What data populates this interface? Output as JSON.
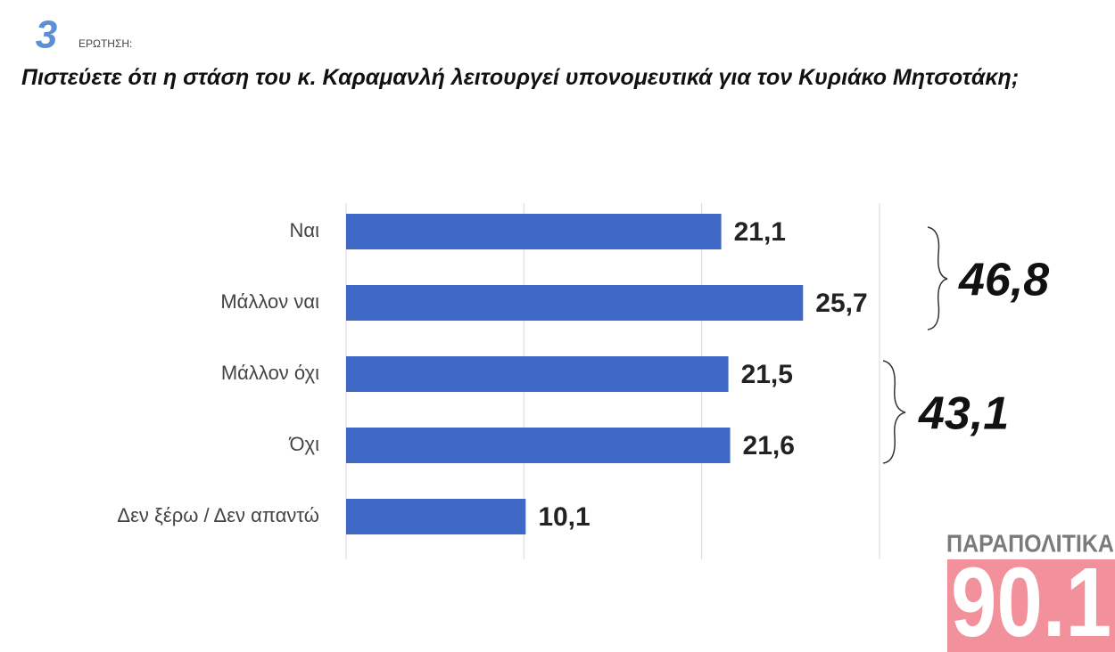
{
  "chart_data": {
    "type": "barh",
    "question_number": "3",
    "question_label": "ΕΡΩΤΗΣΗ:",
    "title": "Πιστεύετε ότι η στάση του κ. Καραμανλή λειτουργεί υπονομευτικά για τον Κυριάκο Μητσοτάκη;",
    "categories": [
      "Ναι",
      "Μάλλον ναι",
      "Μάλλον όχι",
      "Όχι",
      "Δεν ξέρω / Δεν απαντώ"
    ],
    "values": [
      21.1,
      25.7,
      21.5,
      21.6,
      10.1
    ],
    "value_labels": [
      "21,1",
      "25,7",
      "21,5",
      "21,6",
      "10,1"
    ],
    "color": "#3f67c6",
    "xlim": [
      0,
      30
    ],
    "xticks": [
      0,
      10,
      20,
      30
    ],
    "grid": true,
    "annotations": [
      "46,8",
      "43,1"
    ],
    "source": [
      "ΠΑΡΑΠΟΛΙΤΙΚΑ",
      "90.1"
    ]
  }
}
